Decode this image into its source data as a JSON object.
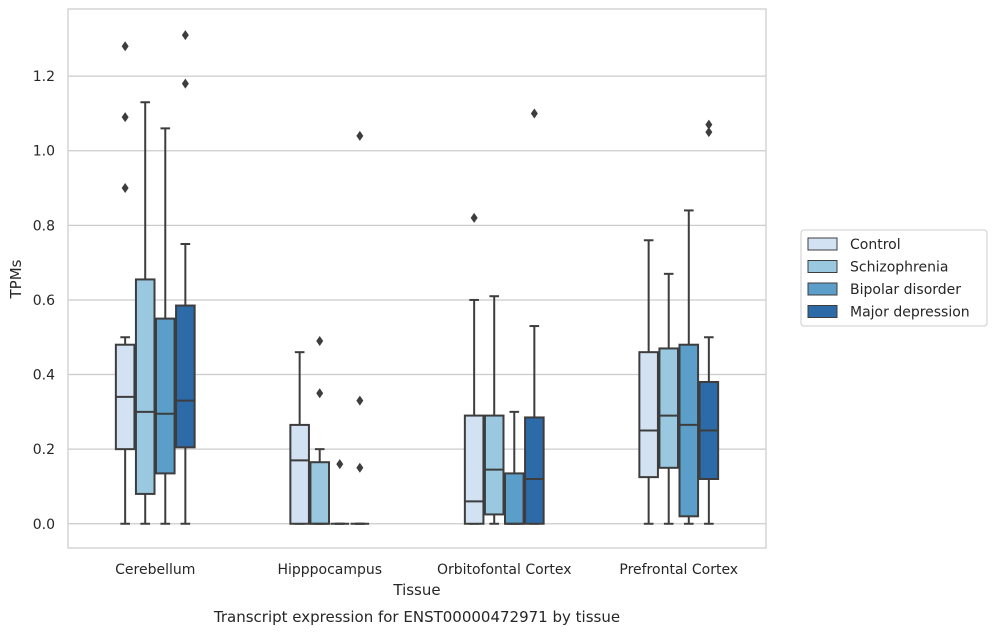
{
  "chart_data": {
    "type": "box",
    "title": "",
    "xlabel": "Tissue",
    "ylabel": "TPMs",
    "caption": "Transcript expression for ENST00000472971 by tissue",
    "ylim": [
      -0.065,
      1.38
    ],
    "yticks": [
      0.0,
      0.2,
      0.4,
      0.6,
      0.8,
      1.0,
      1.2
    ],
    "ytick_labels": [
      "0.0",
      "0.2",
      "0.4",
      "0.6",
      "0.8",
      "1.0",
      "1.2"
    ],
    "grid": "horizontal",
    "legend_position": "right",
    "categories": [
      "Cerebellum",
      "Hipppocampus",
      "Orbitofontal Cortex",
      "Prefrontal Cortex"
    ],
    "series": [
      {
        "name": "Control",
        "color": "#d2e2f2",
        "boxes": [
          {
            "whislo": 0.0,
            "q1": 0.2,
            "med": 0.34,
            "q3": 0.48,
            "whishi": 0.5,
            "fliers": [
              0.9,
              1.09,
              1.28
            ]
          },
          {
            "whislo": 0.0,
            "q1": 0.0,
            "med": 0.17,
            "q3": 0.265,
            "whishi": 0.46,
            "fliers": []
          },
          {
            "whislo": 0.0,
            "q1": 0.0,
            "med": 0.06,
            "q3": 0.29,
            "whishi": 0.6,
            "fliers": [
              0.82
            ]
          },
          {
            "whislo": 0.0,
            "q1": 0.125,
            "med": 0.25,
            "q3": 0.46,
            "whishi": 0.76,
            "fliers": []
          }
        ]
      },
      {
        "name": "Schizophrenia",
        "color": "#9ac8e0",
        "boxes": [
          {
            "whislo": 0.0,
            "q1": 0.08,
            "med": 0.3,
            "q3": 0.655,
            "whishi": 1.13,
            "fliers": []
          },
          {
            "whislo": 0.0,
            "q1": 0.0,
            "med": 0.0,
            "q3": 0.165,
            "whishi": 0.2,
            "fliers": [
              0.35,
              0.49
            ]
          },
          {
            "whislo": 0.0,
            "q1": 0.025,
            "med": 0.145,
            "q3": 0.29,
            "whishi": 0.61,
            "fliers": []
          },
          {
            "whislo": 0.0,
            "q1": 0.15,
            "med": 0.29,
            "q3": 0.47,
            "whishi": 0.67,
            "fliers": []
          }
        ]
      },
      {
        "name": "Bipolar disorder",
        "color": "#5a9ec9",
        "boxes": [
          {
            "whislo": 0.0,
            "q1": 0.135,
            "med": 0.295,
            "q3": 0.55,
            "whishi": 1.06,
            "fliers": []
          },
          {
            "whislo": 0.0,
            "q1": 0.0,
            "med": 0.0,
            "q3": 0.0,
            "whishi": 0.0,
            "fliers": [
              0.16
            ]
          },
          {
            "whislo": 0.0,
            "q1": 0.0,
            "med": 0.0,
            "q3": 0.135,
            "whishi": 0.3,
            "fliers": []
          },
          {
            "whislo": 0.0,
            "q1": 0.02,
            "med": 0.265,
            "q3": 0.48,
            "whishi": 0.84,
            "fliers": []
          }
        ]
      },
      {
        "name": "Major depression",
        "color": "#2c6aa8",
        "boxes": [
          {
            "whislo": 0.0,
            "q1": 0.205,
            "med": 0.33,
            "q3": 0.585,
            "whishi": 0.75,
            "fliers": [
              1.18,
              1.31
            ]
          },
          {
            "whislo": 0.0,
            "q1": 0.0,
            "med": 0.0,
            "q3": 0.0,
            "whishi": 0.0,
            "fliers": [
              0.15,
              0.33,
              1.04
            ]
          },
          {
            "whislo": 0.0,
            "q1": 0.0,
            "med": 0.12,
            "q3": 0.285,
            "whishi": 0.53,
            "fliers": [
              1.1
            ]
          },
          {
            "whislo": 0.0,
            "q1": 0.12,
            "med": 0.25,
            "q3": 0.38,
            "whishi": 0.5,
            "fliers": [
              1.05,
              1.07
            ]
          }
        ]
      }
    ]
  }
}
